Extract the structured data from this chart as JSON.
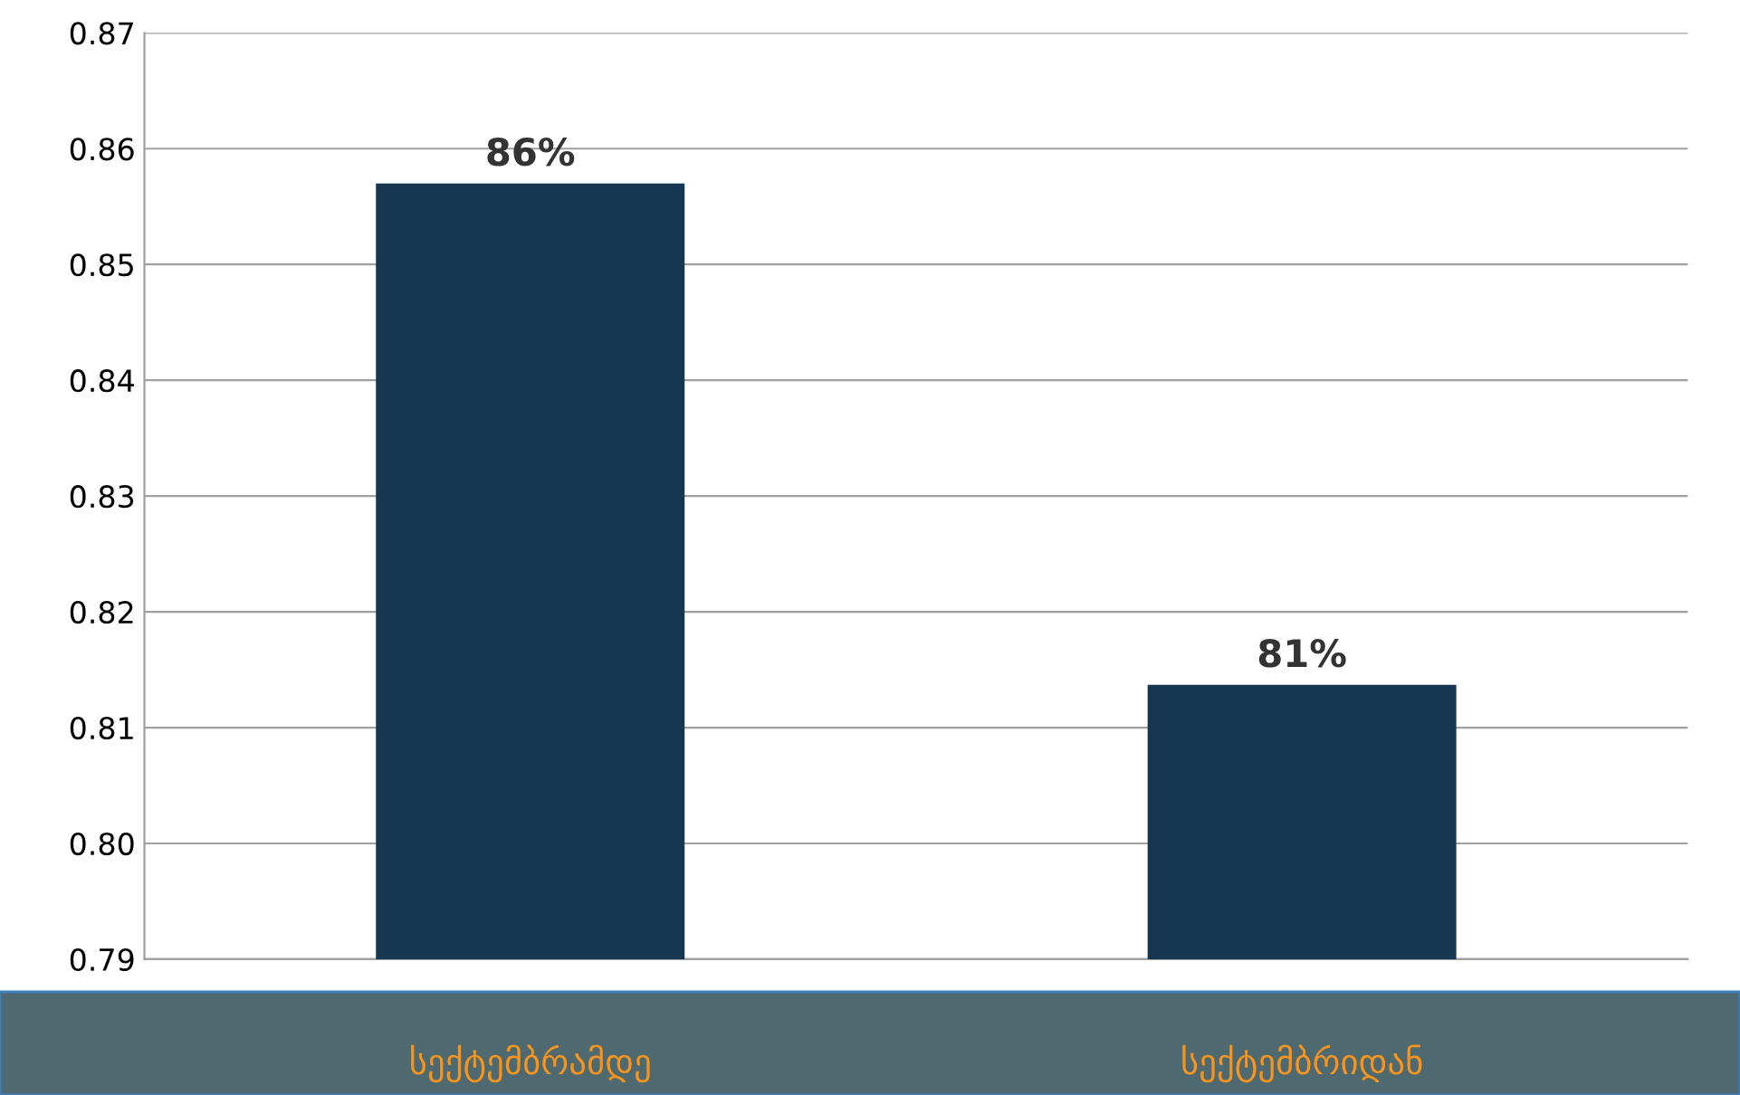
{
  "chart_data": {
    "type": "bar",
    "categories": [
      "სექტემბრამდე",
      "სექტემბრიდან"
    ],
    "values": [
      0.857,
      0.8137
    ],
    "value_labels": [
      "86%",
      "81%"
    ],
    "color": "#17364f",
    "ylim": [
      0.79,
      0.87
    ],
    "yticks": [
      {
        "value": 0.79,
        "label": "0.79"
      },
      {
        "value": 0.8,
        "label": "0.80"
      },
      {
        "value": 0.81,
        "label": "0.81"
      },
      {
        "value": 0.82,
        "label": "0.82"
      },
      {
        "value": 0.83,
        "label": "0.83"
      },
      {
        "value": 0.84,
        "label": "0.84"
      },
      {
        "value": 0.85,
        "label": "0.85"
      },
      {
        "value": 0.86,
        "label": "0.86"
      },
      {
        "value": 0.87,
        "label": "0.87"
      }
    ],
    "grid": "y",
    "legend": false
  }
}
